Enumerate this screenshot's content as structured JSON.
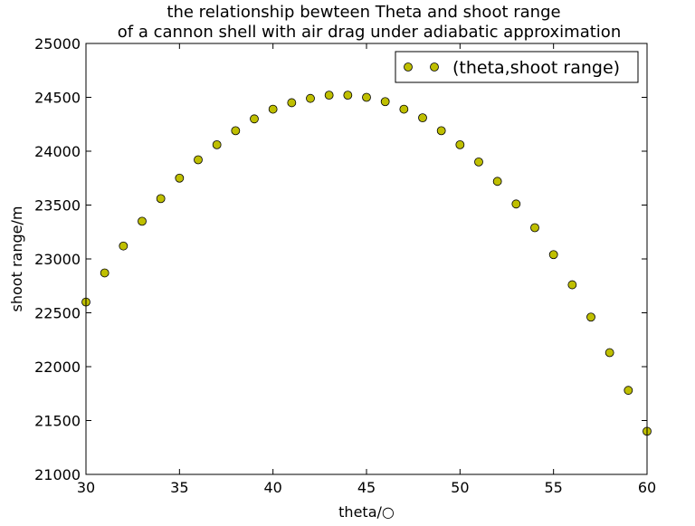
{
  "chart_data": {
    "type": "scatter",
    "title": "the relationship bewteen Theta and shoot range",
    "subtitle": "of a cannon shell with air drag under adiabatic approximation",
    "xlabel": "theta/○",
    "ylabel": "shoot range/m",
    "xlim": [
      30,
      60
    ],
    "ylim": [
      21000,
      25000
    ],
    "xticks": [
      30,
      35,
      40,
      45,
      50,
      55,
      60
    ],
    "yticks": [
      21000,
      21500,
      22000,
      22500,
      23000,
      23500,
      24000,
      24500,
      25000
    ],
    "grid": false,
    "legend_position": "top-right",
    "marker_color": "#bfbf00",
    "series": [
      {
        "name": "(theta,shoot range)",
        "x": [
          30,
          31,
          32,
          33,
          34,
          35,
          36,
          37,
          38,
          39,
          40,
          41,
          42,
          43,
          44,
          45,
          46,
          47,
          48,
          49,
          50,
          51,
          52,
          53,
          54,
          55,
          56,
          57,
          58,
          59,
          60
        ],
        "y": [
          22600,
          22870,
          23120,
          23350,
          23560,
          23750,
          23920,
          24060,
          24190,
          24300,
          24390,
          24450,
          24490,
          24520,
          24520,
          24500,
          24460,
          24390,
          24310,
          24190,
          24060,
          23900,
          23720,
          23510,
          23290,
          23040,
          22760,
          22460,
          22130,
          21780,
          21400
        ]
      }
    ]
  }
}
